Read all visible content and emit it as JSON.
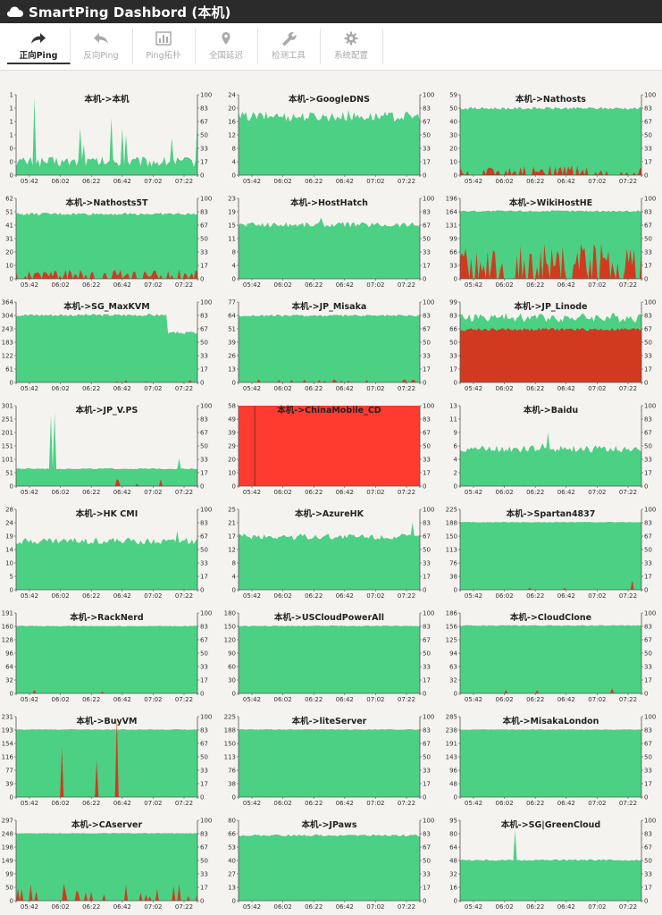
{
  "app": {
    "title": "SmartPing Dashbord (本机)"
  },
  "tabs": [
    {
      "label": "正向Ping",
      "icon": "share-arrow-icon",
      "active": true
    },
    {
      "label": "反向Ping",
      "icon": "reply-arrow-icon",
      "active": false
    },
    {
      "label": "Ping拓扑",
      "icon": "bar-chart-icon",
      "active": false
    },
    {
      "label": "全国延迟",
      "icon": "map-pin-icon",
      "active": false
    },
    {
      "label": "检测工具",
      "icon": "wrench-icon",
      "active": false
    },
    {
      "label": "系统配置",
      "icon": "gear-icon",
      "active": false
    }
  ],
  "colors": {
    "latency": "#4cd084",
    "loss": "#d23a20",
    "loss_full": "#ff3b30",
    "axis": "#555555",
    "header": "#2b2b2b"
  },
  "time_ticks": [
    "05:42",
    "06:02",
    "06:22",
    "06:42",
    "07:02",
    "07:22"
  ],
  "loss_ticks": [
    "100",
    "83",
    "67",
    "50",
    "33",
    "17",
    "0"
  ],
  "chart_data": [
    {
      "type": "area",
      "title": "本机->本机",
      "yticks": [
        "1",
        "1",
        "1",
        "1",
        "0",
        "0",
        "0"
      ],
      "ymax": 1.2,
      "latency": {
        "base": 0.2,
        "noise": 0.08,
        "spikes": [
          [
            10,
            1.0
          ],
          [
            35,
            0.5
          ],
          [
            37,
            0.3
          ],
          [
            52,
            0.6
          ],
          [
            58,
            0.5
          ],
          [
            60,
            0.4
          ],
          [
            85,
            0.4
          ],
          [
            99,
            0.7
          ]
        ]
      },
      "loss": null,
      "loss_full": false
    },
    {
      "type": "area",
      "title": "本机->GoogleDNS",
      "yticks": [
        "24",
        "20",
        "16",
        "12",
        "8",
        "4",
        "0"
      ],
      "ymax": 24,
      "latency": {
        "base": 17.5,
        "noise": 1.5,
        "spikes": [
          [
            20,
            1.5
          ],
          [
            60,
            1.5
          ]
        ]
      },
      "loss": null,
      "loss_full": false
    },
    {
      "type": "area",
      "title": "本机->Nathosts",
      "yticks": [
        "59",
        "50",
        "40",
        "30",
        "20",
        "10",
        "0"
      ],
      "ymax": 59,
      "latency": {
        "base": 49,
        "noise": 1,
        "spikes": []
      },
      "loss": {
        "level": 8,
        "density": 0.5
      },
      "loss_full": false
    },
    {
      "type": "area",
      "title": "本机->Nathosts5T",
      "yticks": [
        "62",
        "51",
        "41",
        "31",
        "20",
        "10",
        "0"
      ],
      "ymax": 62,
      "latency": {
        "base": 50,
        "noise": 1,
        "spikes": []
      },
      "loss": {
        "level": 8,
        "density": 0.5
      },
      "loss_full": false
    },
    {
      "type": "area",
      "title": "本机->HostHatch",
      "yticks": [
        "23",
        "19",
        "15",
        "11",
        "8",
        "4",
        "0"
      ],
      "ymax": 23,
      "latency": {
        "base": 15.5,
        "noise": 0.8,
        "spikes": [
          [
            45,
            2
          ]
        ]
      },
      "loss": null,
      "loss_full": false
    },
    {
      "type": "area",
      "title": "本机->WikiHostHE",
      "yticks": [
        "196",
        "164",
        "131",
        "99",
        "66",
        "33",
        "0"
      ],
      "ymax": 196,
      "latency": {
        "base": 165,
        "noise": 2,
        "spikes": []
      },
      "loss": {
        "level": 30,
        "density": 0.6
      },
      "loss_full": false
    },
    {
      "type": "area",
      "title": "本机->SG_MaxKVM",
      "yticks": [
        "364",
        "304",
        "243",
        "183",
        "122",
        "61",
        "0"
      ],
      "ymax": 364,
      "latency": {
        "base": 305,
        "noise": 6,
        "spikes": [],
        "drop_at": 0.83,
        "drop_to": 225
      },
      "loss": {
        "level": 3,
        "density": 0.04
      },
      "loss_full": false
    },
    {
      "type": "area",
      "title": "本机->JP_Misaka",
      "yticks": [
        "77",
        "64",
        "51",
        "39",
        "26",
        "13",
        "0"
      ],
      "ymax": 77,
      "latency": {
        "base": 64,
        "noise": 1,
        "spikes": []
      },
      "loss": {
        "level": 3,
        "density": 0.08
      },
      "loss_full": false
    },
    {
      "type": "area",
      "title": "本机->JP_Linode",
      "yticks": [
        "99",
        "83",
        "66",
        "50",
        "33",
        "17",
        "0"
      ],
      "ymax": 99,
      "latency": {
        "base": 80,
        "noise": 6,
        "spikes": []
      },
      "loss": {
        "level": 66,
        "density": 1
      },
      "loss_full": false
    },
    {
      "type": "area",
      "title": "本机->JP_V.PS",
      "yticks": [
        "301",
        "251",
        "201",
        "151",
        "101",
        "51",
        "0"
      ],
      "ymax": 301,
      "latency": {
        "base": 65,
        "noise": 2,
        "spikes": [
          [
            19,
            200
          ],
          [
            21,
            210
          ],
          [
            89,
            40
          ]
        ]
      },
      "loss": {
        "level": 8,
        "density": 0.05
      },
      "loss_full": false
    },
    {
      "type": "area",
      "title": "本机->ChinaMobile_CD",
      "yticks": [
        "58",
        "49",
        "39",
        "29",
        "20",
        "10",
        "0"
      ],
      "ymax": 58,
      "latency": {
        "base": 0,
        "noise": 0,
        "spikes": []
      },
      "loss": null,
      "loss_full": true
    },
    {
      "type": "area",
      "title": "本机->Baidu",
      "yticks": [
        "13",
        "11",
        "9",
        "6",
        "4",
        "2",
        "0"
      ],
      "ymax": 13,
      "latency": {
        "base": 6,
        "noise": 0.6,
        "spikes": [
          [
            48,
            3
          ],
          [
            45,
            1.5
          ]
        ]
      },
      "loss": {
        "level": 1,
        "density": 0.03
      },
      "loss_full": false
    },
    {
      "type": "area",
      "title": "本机->HK CMI",
      "yticks": [
        "28",
        "24",
        "19",
        "14",
        "10",
        "5",
        "0"
      ],
      "ymax": 28,
      "latency": {
        "base": 17,
        "noise": 1.2,
        "spikes": [
          [
            88,
            4
          ]
        ]
      },
      "loss": {
        "level": 7,
        "density": 0.01
      },
      "loss_full": false
    },
    {
      "type": "area",
      "title": "本机->AzureHK",
      "yticks": [
        "25",
        "21",
        "17",
        "12",
        "8",
        "4",
        "0"
      ],
      "ymax": 25,
      "latency": {
        "base": 16.5,
        "noise": 1,
        "spikes": [
          [
            95,
            4
          ]
        ]
      },
      "loss": null,
      "loss_full": false
    },
    {
      "type": "area",
      "title": "本机->Spartan4837",
      "yticks": [
        "225",
        "188",
        "150",
        "113",
        "76",
        "38",
        "0"
      ],
      "ymax": 225,
      "latency": {
        "base": 189,
        "noise": 1,
        "spikes": []
      },
      "loss": {
        "level": 8,
        "density": 0.05
      },
      "loss_full": false
    },
    {
      "type": "area",
      "title": "本机->RackNerd",
      "yticks": [
        "191",
        "160",
        "128",
        "96",
        "64",
        "32",
        "0"
      ],
      "ymax": 191,
      "latency": {
        "base": 160,
        "noise": 1,
        "spikes": []
      },
      "loss": {
        "level": 6,
        "density": 0.03
      },
      "loss_full": false
    },
    {
      "type": "area",
      "title": "本机->USCloudPowerAll",
      "yticks": [
        "180",
        "150",
        "120",
        "90",
        "60",
        "30",
        "0"
      ],
      "ymax": 180,
      "latency": {
        "base": 151,
        "noise": 1,
        "spikes": []
      },
      "loss": {
        "level": 60,
        "density": 0.02
      },
      "loss_full": false
    },
    {
      "type": "area",
      "title": "本机->CloudClone",
      "yticks": [
        "186",
        "156",
        "125",
        "94",
        "63",
        "32",
        "0"
      ],
      "ymax": 186,
      "latency": {
        "base": 157,
        "noise": 1,
        "spikes": []
      },
      "loss": {
        "level": 6,
        "density": 0.03
      },
      "loss_full": false
    },
    {
      "type": "area",
      "title": "本机->BuyVM",
      "yticks": [
        "231",
        "193",
        "154",
        "116",
        "77",
        "39",
        "0"
      ],
      "ymax": 231,
      "latency": {
        "base": 194,
        "noise": 1,
        "spikes": []
      },
      "loss": {
        "level": 80,
        "density": 0.02
      },
      "loss_full": false
    },
    {
      "type": "area",
      "title": "本机->liteServer",
      "yticks": [
        "225",
        "188",
        "150",
        "113",
        "76",
        "38",
        "0"
      ],
      "ymax": 225,
      "latency": {
        "base": 189,
        "noise": 1,
        "spikes": []
      },
      "loss": null,
      "loss_full": false
    },
    {
      "type": "area",
      "title": "本机->MisakaLondon",
      "yticks": [
        "285",
        "238",
        "191",
        "143",
        "96",
        "48",
        "0"
      ],
      "ymax": 285,
      "latency": {
        "base": 239,
        "noise": 1,
        "spikes": []
      },
      "loss": null,
      "loss_full": false
    },
    {
      "type": "area",
      "title": "本机->CAserver",
      "yticks": [
        "297",
        "248",
        "198",
        "149",
        "99",
        "50",
        "0"
      ],
      "ymax": 297,
      "latency": {
        "base": 249,
        "noise": 1,
        "spikes": []
      },
      "loss": {
        "level": 15,
        "density": 0.15
      },
      "loss_full": false
    },
    {
      "type": "area",
      "title": "本机->JPaws",
      "yticks": [
        "80",
        "66",
        "53",
        "40",
        "27",
        "13",
        "0"
      ],
      "ymax": 80,
      "latency": {
        "base": 65,
        "noise": 1,
        "spikes": []
      },
      "loss": null,
      "loss_full": false
    },
    {
      "type": "area",
      "title": "本机->SG|GreenCloud",
      "yticks": [
        "95",
        "80",
        "64",
        "48",
        "32",
        "16",
        "0"
      ],
      "ymax": 95,
      "latency": {
        "base": 48,
        "noise": 1,
        "spikes": [
          [
            30,
            35
          ]
        ]
      },
      "loss": null,
      "loss_full": false
    }
  ]
}
